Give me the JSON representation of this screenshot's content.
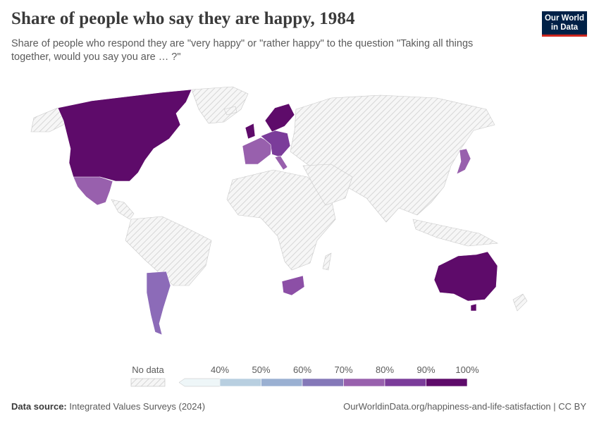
{
  "header": {
    "title": "Share of people who say they are happy, 1984",
    "subtitle": "Share of people who respond they are \"very happy\" or \"rather happy\" to the question \"Taking all things together, would you say you are … ?\""
  },
  "logo": {
    "line1": "Our World",
    "line2": "in Data"
  },
  "legend": {
    "no_data_label": "No data",
    "bins": [
      "40%",
      "50%",
      "60%",
      "70%",
      "80%",
      "90%",
      "100%"
    ],
    "colors": [
      "#eef6f8",
      "#b8cfe0",
      "#9ab0d2",
      "#8478b8",
      "#9860ad",
      "#7b3c9a",
      "#5e0b6a"
    ]
  },
  "footer": {
    "source_label": "Data source:",
    "source_text": "Integrated Values Surveys (2024)",
    "url_text": "OurWorldinData.org/happiness-and-life-satisfaction | CC BY"
  },
  "map_data": {
    "highlighted_regions": [
      {
        "name": "North America (US & Canada)",
        "color": "#5e0b6a"
      },
      {
        "name": "Mexico",
        "color": "#9860ad"
      },
      {
        "name": "Argentina",
        "color": "#8c6bb8"
      },
      {
        "name": "Western Europe",
        "color": "#7b3c9a"
      },
      {
        "name": "Spain & France",
        "color": "#9860ad"
      },
      {
        "name": "Scandinavia",
        "color": "#5e0b6a"
      },
      {
        "name": "South Africa",
        "color": "#8c4fa6"
      },
      {
        "name": "Japan",
        "color": "#9860ad"
      },
      {
        "name": "Australia",
        "color": "#5e0b6a"
      }
    ],
    "no_data_fill": "hatched"
  }
}
